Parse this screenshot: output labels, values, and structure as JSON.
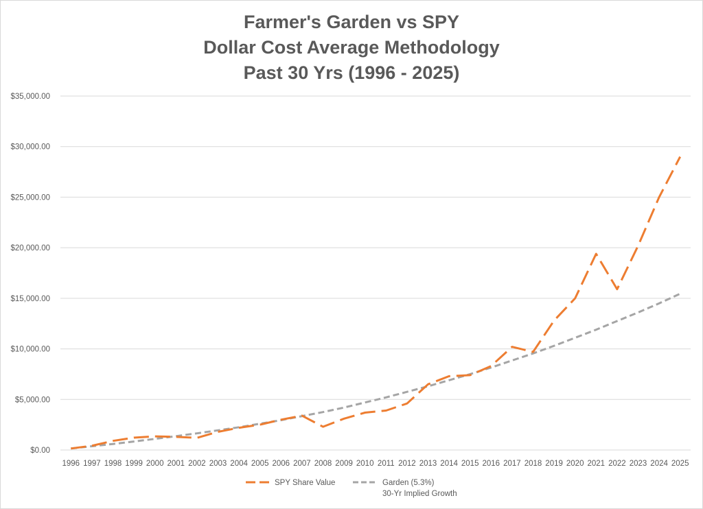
{
  "chart_data": {
    "type": "line",
    "title_lines": [
      "Farmer's Garden vs SPY",
      "Dollar Cost Average Methodology",
      "Past 30 Yrs (1996 -  2025)"
    ],
    "xlabel": "",
    "ylabel": "",
    "categories": [
      "1996",
      "1997",
      "1998",
      "1999",
      "2000",
      "2001",
      "2002",
      "2003",
      "2004",
      "2005",
      "2006",
      "2007",
      "2008",
      "2009",
      "2010",
      "2011",
      "2012",
      "2013",
      "2014",
      "2015",
      "2016",
      "2017",
      "2018",
      "2019",
      "2020",
      "2021",
      "2022",
      "2023",
      "2024",
      "2025"
    ],
    "ylim": [
      0,
      35000
    ],
    "y_ticks": [
      0,
      5000,
      10000,
      15000,
      20000,
      25000,
      30000,
      35000
    ],
    "y_tick_labels": [
      "$0.00",
      "$5,000.00",
      "$10,000.00",
      "$15,000.00",
      "$20,000.00",
      "$25,000.00",
      "$30,000.00",
      "$35,000.00"
    ],
    "grid": true,
    "legend_position": "bottom",
    "series": [
      {
        "name": "SPY Share Value",
        "color": "#ed7d31",
        "style": "long-dash",
        "values": [
          150,
          420,
          900,
          1220,
          1350,
          1300,
          1200,
          1800,
          2200,
          2500,
          3000,
          3400,
          2300,
          3100,
          3700,
          3900,
          4600,
          6500,
          7300,
          7400,
          8300,
          10200,
          9700,
          12800,
          15000,
          19400,
          15900,
          20200,
          25000,
          29000
        ]
      },
      {
        "name": "Garden (5.3%)",
        "name_line2": "30-Yr Implied Growth",
        "color": "#a5a5a5",
        "style": "short-dash",
        "values": [
          150,
          370,
          600,
          840,
          1100,
          1370,
          1650,
          1950,
          2250,
          2600,
          2950,
          3350,
          3750,
          4200,
          4700,
          5200,
          5750,
          6300,
          6900,
          7500,
          8150,
          8850,
          9550,
          10300,
          11100,
          11900,
          12750,
          13600,
          14500,
          15450
        ]
      }
    ]
  }
}
